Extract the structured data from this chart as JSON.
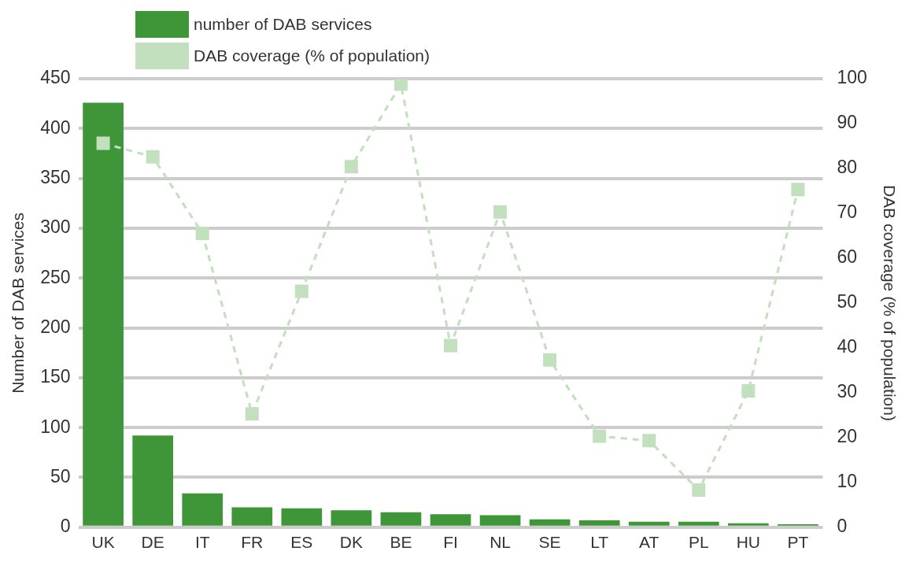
{
  "chart_data": {
    "type": "bar",
    "ylabel": "Number of DAB services",
    "y2label": "DAB coverage (% of population)",
    "categories": [
      "UK",
      "DE",
      "IT",
      "FR",
      "ES",
      "DK",
      "BE",
      "FI",
      "NL",
      "SE",
      "LT",
      "AT",
      "PL",
      "HU",
      "PT"
    ],
    "series": [
      {
        "name": "number of DAB services",
        "color": "#3e9639",
        "values": [
          426,
          92,
          34,
          20,
          19,
          17,
          15,
          13,
          12,
          8,
          7,
          5.5,
          5.5,
          4,
          3
        ]
      },
      {
        "name": "DAB coverage (% of population)",
        "type": "line",
        "axis": "y2",
        "color": "#c2dfbe",
        "marker": "square",
        "line_style": "dashed",
        "values": [
          85.6,
          82.6,
          65.5,
          25.3,
          52.6,
          80.4,
          98.8,
          40.5,
          70.3,
          37.3,
          20.3,
          19.3,
          8.3,
          30.4,
          75.3
        ]
      }
    ],
    "ylim": [
      0,
      450
    ],
    "yticks": [
      0,
      50,
      100,
      150,
      200,
      250,
      300,
      350,
      400,
      450
    ],
    "y2lim": [
      0,
      100
    ],
    "y2ticks": [
      0,
      10,
      20,
      30,
      40,
      50,
      60,
      70,
      80,
      90,
      100
    ],
    "grid": "y",
    "legend": "top left"
  }
}
